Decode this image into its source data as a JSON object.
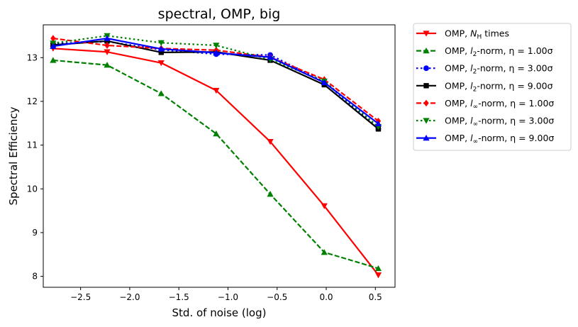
{
  "chart_data": {
    "type": "line",
    "title": "spectral, OMP, big",
    "xlabel": "Std. of noise (log)",
    "ylabel": "Spectral Efficiency",
    "xlim": [
      -2.88,
      0.7
    ],
    "ylim": [
      7.75,
      13.75
    ],
    "xticks": [
      -2.5,
      -2.0,
      -1.5,
      -1.0,
      -0.5,
      0.0,
      0.5
    ],
    "xtick_labels": [
      "−2.5",
      "−2.0",
      "−1.5",
      "−1.0",
      "−0.5",
      "0.0",
      "0.5"
    ],
    "yticks": [
      8,
      9,
      10,
      11,
      12,
      13
    ],
    "ytick_labels": [
      "8",
      "9",
      "10",
      "11",
      "12",
      "13"
    ],
    "grid": false,
    "legend_placement": "outside-right",
    "x": [
      -2.78,
      -2.23,
      -1.68,
      -1.12,
      -0.57,
      -0.02,
      0.53
    ],
    "series": [
      {
        "name_pre": "OMP, ",
        "name_main": "N",
        "name_sub": "H",
        "name_post": " times",
        "color": "#ff0000",
        "dash": "solid",
        "marker": "triangle-down",
        "values": [
          13.21,
          13.13,
          12.88,
          12.25,
          11.08,
          9.61,
          8.03
        ]
      },
      {
        "name_pre": "OMP, ",
        "name_main": "l",
        "name_sub": "2",
        "name_post": "-norm, η = 1.00σ",
        "color": "#008000",
        "dash": "dashed",
        "marker": "triangle-up",
        "values": [
          12.94,
          12.83,
          12.18,
          11.26,
          9.88,
          8.55,
          8.18
        ]
      },
      {
        "name_pre": "OMP, ",
        "name_main": "l",
        "name_sub": "2",
        "name_post": "-norm, η = 3.00σ",
        "color": "#0000ff",
        "dash": "dotted",
        "marker": "circle",
        "values": [
          13.32,
          13.37,
          13.18,
          13.08,
          13.06,
          12.45,
          11.37
        ]
      },
      {
        "name_pre": "OMP, ",
        "name_main": "l",
        "name_sub": "2",
        "name_post": "-norm, η = 9.00σ",
        "color": "#000000",
        "dash": "solid",
        "marker": "square",
        "values": [
          13.29,
          13.38,
          13.12,
          13.13,
          12.94,
          12.38,
          11.37
        ]
      },
      {
        "name_pre": "OMP, ",
        "name_main": "l",
        "name_sub": "∞",
        "name_post": "-norm, η = 1.00σ",
        "color": "#ff0000",
        "dash": "dashed",
        "marker": "diamond",
        "values": [
          13.44,
          13.28,
          13.21,
          13.17,
          13.01,
          12.5,
          11.55
        ]
      },
      {
        "name_pre": "OMP, ",
        "name_main": "l",
        "name_sub": "∞",
        "name_post": "-norm, η = 3.00σ",
        "color": "#008000",
        "dash": "dotted",
        "marker": "triangle-down",
        "values": [
          13.33,
          13.5,
          13.34,
          13.28,
          12.96,
          12.46,
          11.42
        ]
      },
      {
        "name_pre": "OMP, ",
        "name_main": "l",
        "name_sub": "∞",
        "name_post": "-norm, η = 9.00σ",
        "color": "#0000ff",
        "dash": "solid",
        "marker": "triangle-up",
        "values": [
          13.26,
          13.44,
          13.2,
          13.11,
          13.01,
          12.43,
          11.49
        ]
      }
    ]
  }
}
